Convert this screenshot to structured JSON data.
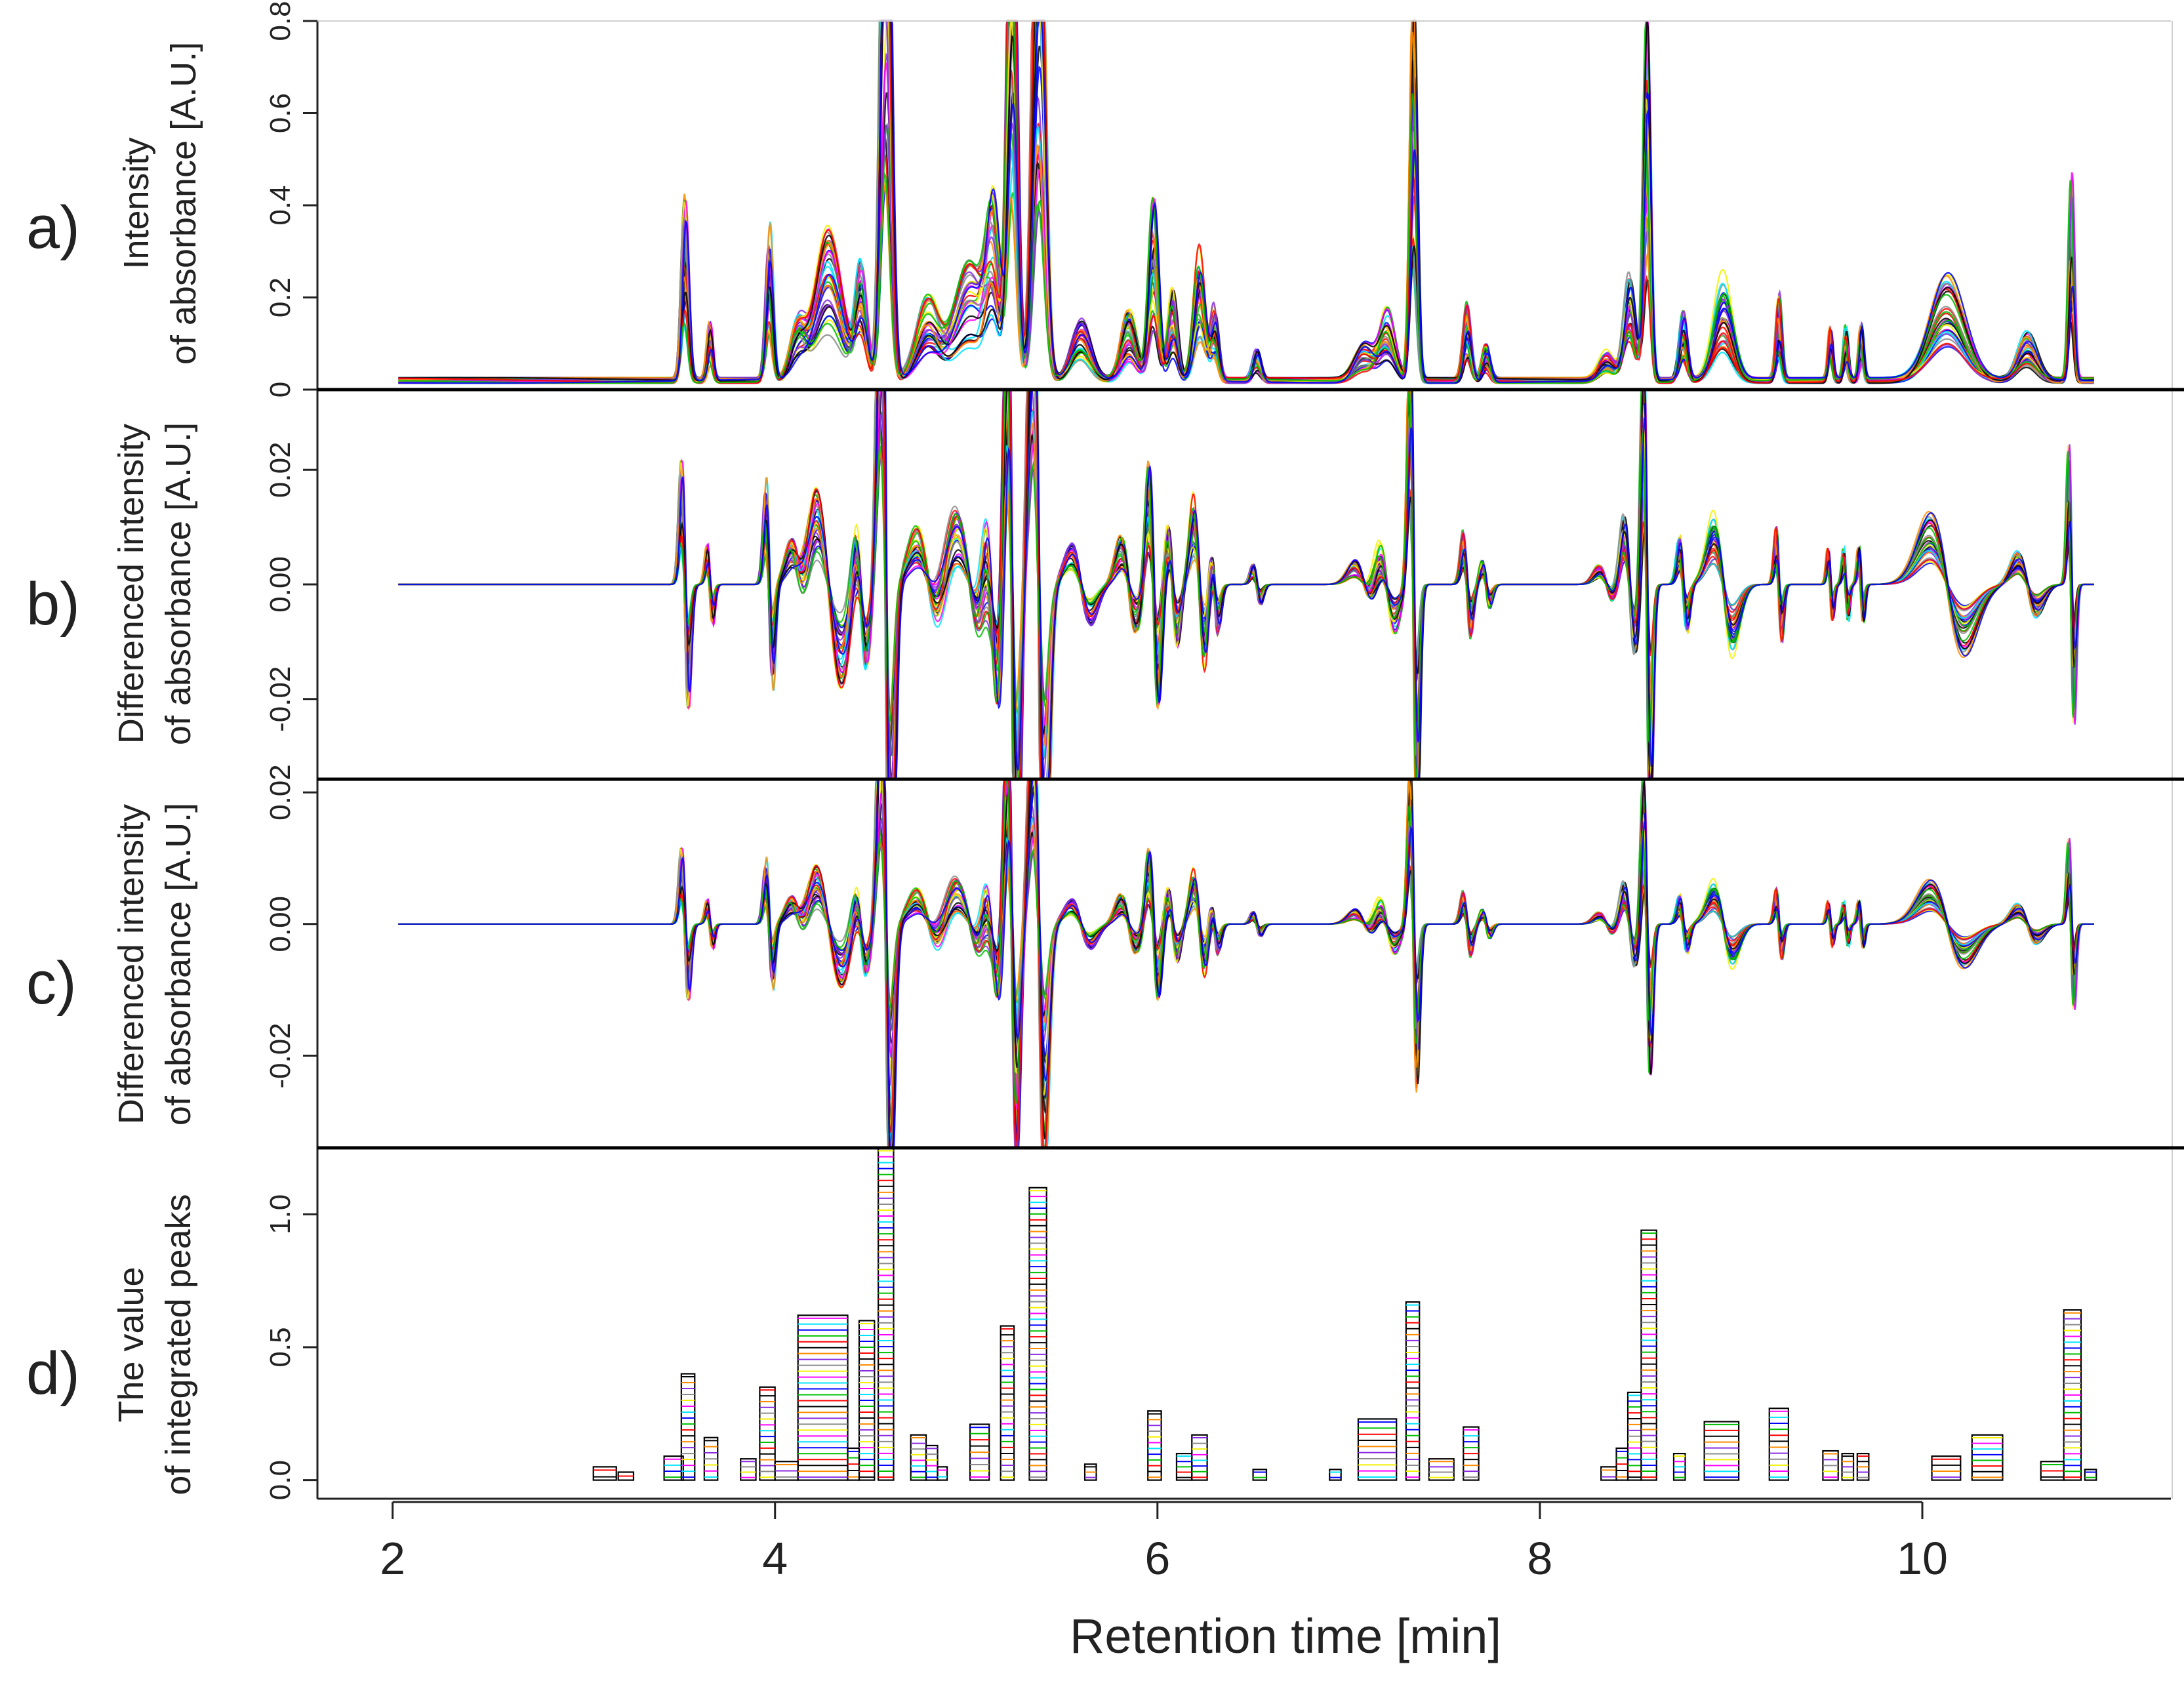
{
  "chart_data": {
    "type": "line",
    "xlabel": "Retention time [min]",
    "xlim": [
      1.6,
      11.3
    ],
    "x_ticks": [
      2,
      4,
      6,
      8,
      10
    ],
    "x_tick_labels": [
      "2",
      "4",
      "6",
      "8",
      "10"
    ],
    "series_colors": [
      "#000000",
      "#ff0000",
      "#00c000",
      "#0000ff",
      "#00e5ff",
      "#ff00ff",
      "#f2f200",
      "#8c8c8c",
      "#8a2be2",
      "#ff8c00"
    ],
    "panels": [
      {
        "id": "a",
        "label": "a)",
        "type": "line",
        "ylabel_lines": [
          "Intensity",
          "of absorbance [A.U.]"
        ],
        "ylim": [
          0,
          0.8
        ],
        "y_ticks": [
          0,
          0.2,
          0.4,
          0.6,
          0.8
        ],
        "y_tick_labels": [
          "0",
          "0.2",
          "0.4",
          "0.6",
          "0.8"
        ],
        "baseline": 0.02,
        "peaks": [
          {
            "t": 3.53,
            "h": 0.3,
            "w": 0.018
          },
          {
            "t": 3.66,
            "h": 0.1,
            "w": 0.015
          },
          {
            "t": 3.97,
            "h": 0.26,
            "w": 0.018
          },
          {
            "t": 4.12,
            "h": 0.09,
            "w": 0.04
          },
          {
            "t": 4.28,
            "h": 0.26,
            "w": 0.07
          },
          {
            "t": 4.45,
            "h": 0.2,
            "w": 0.03
          },
          {
            "t": 4.58,
            "h": 1.2,
            "w": 0.025
          },
          {
            "t": 4.8,
            "h": 0.14,
            "w": 0.06
          },
          {
            "t": 5.02,
            "h": 0.2,
            "w": 0.08
          },
          {
            "t": 5.14,
            "h": 0.26,
            "w": 0.035
          },
          {
            "t": 5.24,
            "h": 0.95,
            "w": 0.025
          },
          {
            "t": 5.38,
            "h": 1.05,
            "w": 0.03
          },
          {
            "t": 5.6,
            "h": 0.1,
            "w": 0.05
          },
          {
            "t": 5.85,
            "h": 0.12,
            "w": 0.04
          },
          {
            "t": 5.98,
            "h": 0.3,
            "w": 0.025
          },
          {
            "t": 6.08,
            "h": 0.15,
            "w": 0.025
          },
          {
            "t": 6.22,
            "h": 0.22,
            "w": 0.03
          },
          {
            "t": 6.3,
            "h": 0.12,
            "w": 0.02
          },
          {
            "t": 6.52,
            "h": 0.05,
            "w": 0.02
          },
          {
            "t": 7.08,
            "h": 0.06,
            "w": 0.05
          },
          {
            "t": 7.2,
            "h": 0.12,
            "w": 0.04
          },
          {
            "t": 7.34,
            "h": 0.66,
            "w": 0.018
          },
          {
            "t": 7.62,
            "h": 0.13,
            "w": 0.02
          },
          {
            "t": 7.72,
            "h": 0.06,
            "w": 0.02
          },
          {
            "t": 8.35,
            "h": 0.05,
            "w": 0.04
          },
          {
            "t": 8.47,
            "h": 0.18,
            "w": 0.03
          },
          {
            "t": 8.56,
            "h": 0.6,
            "w": 0.018
          },
          {
            "t": 8.75,
            "h": 0.12,
            "w": 0.02
          },
          {
            "t": 8.96,
            "h": 0.18,
            "w": 0.05
          },
          {
            "t": 9.25,
            "h": 0.14,
            "w": 0.015
          },
          {
            "t": 9.52,
            "h": 0.09,
            "w": 0.012
          },
          {
            "t": 9.6,
            "h": 0.09,
            "w": 0.012
          },
          {
            "t": 9.68,
            "h": 0.09,
            "w": 0.012
          },
          {
            "t": 10.13,
            "h": 0.18,
            "w": 0.09
          },
          {
            "t": 10.55,
            "h": 0.08,
            "w": 0.05
          },
          {
            "t": 10.78,
            "h": 0.34,
            "w": 0.014
          }
        ]
      },
      {
        "id": "b",
        "label": "b)",
        "type": "line",
        "ylabel_lines": [
          "Differenced intensity",
          "of absorbance [A.U.]"
        ],
        "ylim": [
          -0.034,
          0.034
        ],
        "y_ticks": [
          -0.02,
          0.0,
          0.02
        ],
        "y_tick_labels": [
          "-0.02",
          "0.00",
          "0.02"
        ],
        "amplitude_scale": 0.09
      },
      {
        "id": "c",
        "label": "c)",
        "type": "line",
        "ylabel_lines": [
          "Differenced intensity",
          "of absorbance [A.U.]"
        ],
        "ylim": [
          -0.034,
          0.022
        ],
        "y_ticks": [
          -0.02,
          0.0,
          0.02
        ],
        "y_tick_labels": [
          "-0.02",
          "0.00",
          "0.02"
        ],
        "amplitude_scale": 0.06
      },
      {
        "id": "d",
        "label": "d)",
        "type": "bar",
        "ylabel_lines": [
          "The value",
          "of integrated peaks"
        ],
        "ylim": [
          -0.07,
          1.25
        ],
        "y_ticks": [
          0.0,
          0.5,
          1.0
        ],
        "y_tick_labels": [
          "0.0",
          "0.5",
          "1.0"
        ],
        "bars": [
          {
            "x0": 3.05,
            "x1": 3.17,
            "v": 0.05
          },
          {
            "x0": 3.18,
            "x1": 3.26,
            "v": 0.03
          },
          {
            "x0": 3.42,
            "x1": 3.52,
            "v": 0.09
          },
          {
            "x0": 3.51,
            "x1": 3.58,
            "v": 0.4
          },
          {
            "x0": 3.63,
            "x1": 3.7,
            "v": 0.16
          },
          {
            "x0": 3.82,
            "x1": 3.9,
            "v": 0.08
          },
          {
            "x0": 3.92,
            "x1": 4.0,
            "v": 0.35
          },
          {
            "x0": 4.0,
            "x1": 4.12,
            "v": 0.07
          },
          {
            "x0": 4.12,
            "x1": 4.38,
            "v": 0.62
          },
          {
            "x0": 4.38,
            "x1": 4.44,
            "v": 0.12
          },
          {
            "x0": 4.44,
            "x1": 4.52,
            "v": 0.6
          },
          {
            "x0": 4.54,
            "x1": 4.62,
            "v": 1.25
          },
          {
            "x0": 4.71,
            "x1": 4.79,
            "v": 0.17
          },
          {
            "x0": 4.79,
            "x1": 4.85,
            "v": 0.13
          },
          {
            "x0": 4.85,
            "x1": 4.9,
            "v": 0.05
          },
          {
            "x0": 5.02,
            "x1": 5.12,
            "v": 0.21
          },
          {
            "x0": 5.18,
            "x1": 5.25,
            "v": 0.58
          },
          {
            "x0": 5.33,
            "x1": 5.42,
            "v": 1.1
          },
          {
            "x0": 5.62,
            "x1": 5.68,
            "v": 0.06
          },
          {
            "x0": 5.95,
            "x1": 6.02,
            "v": 0.26
          },
          {
            "x0": 6.1,
            "x1": 6.18,
            "v": 0.1
          },
          {
            "x0": 6.18,
            "x1": 6.26,
            "v": 0.17
          },
          {
            "x0": 6.5,
            "x1": 6.57,
            "v": 0.04
          },
          {
            "x0": 6.9,
            "x1": 6.96,
            "v": 0.04
          },
          {
            "x0": 7.05,
            "x1": 7.25,
            "v": 0.23
          },
          {
            "x0": 7.3,
            "x1": 7.37,
            "v": 0.67
          },
          {
            "x0": 7.42,
            "x1": 7.55,
            "v": 0.08
          },
          {
            "x0": 7.6,
            "x1": 7.68,
            "v": 0.2
          },
          {
            "x0": 8.32,
            "x1": 8.4,
            "v": 0.05
          },
          {
            "x0": 8.4,
            "x1": 8.46,
            "v": 0.12
          },
          {
            "x0": 8.46,
            "x1": 8.53,
            "v": 0.33
          },
          {
            "x0": 8.53,
            "x1": 8.61,
            "v": 0.94
          },
          {
            "x0": 8.7,
            "x1": 8.76,
            "v": 0.1
          },
          {
            "x0": 8.86,
            "x1": 9.04,
            "v": 0.22
          },
          {
            "x0": 9.2,
            "x1": 9.3,
            "v": 0.27
          },
          {
            "x0": 9.48,
            "x1": 9.56,
            "v": 0.11
          },
          {
            "x0": 9.58,
            "x1": 9.64,
            "v": 0.1
          },
          {
            "x0": 9.66,
            "x1": 9.72,
            "v": 0.1
          },
          {
            "x0": 10.05,
            "x1": 10.2,
            "v": 0.09
          },
          {
            "x0": 10.26,
            "x1": 10.42,
            "v": 0.17
          },
          {
            "x0": 10.62,
            "x1": 10.74,
            "v": 0.07
          },
          {
            "x0": 10.74,
            "x1": 10.83,
            "v": 0.64
          },
          {
            "x0": 10.85,
            "x1": 10.91,
            "v": 0.04
          }
        ]
      }
    ]
  }
}
